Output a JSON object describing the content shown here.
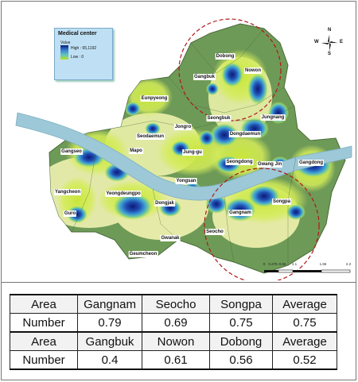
{
  "legend": {
    "title": "Medical center",
    "subtitle": "Value",
    "high": "High : 65,1192",
    "low": "Low : 0"
  },
  "compass": {
    "n": "N",
    "s": "S",
    "e": "E",
    "w": "W"
  },
  "scalebar": {
    "ticks": [
      "0",
      "0.275",
      "0.55",
      "1.1",
      "1.65",
      "2.2"
    ]
  },
  "district_labels": [
    "Dobong",
    "Nowon",
    "Gangbuk",
    "Eunpyeong",
    "Seongbuk",
    "Jungnang",
    "Dongdaemun",
    "Jongro",
    "Seodaemun",
    "Mapo",
    "Jung-gu",
    "Gangseo",
    "Seongdong",
    "Gwang Jin",
    "Gangdong",
    "Yongsan",
    "Yangcheon",
    "Yeongdeungpo",
    "Dongjak",
    "Songpa",
    "Gangnam",
    "Guro",
    "Seocho",
    "Gwanak",
    "Geumcheon"
  ],
  "table": {
    "rows": [
      [
        "Area",
        "Gangnam",
        "Seocho",
        "Songpa",
        "Average"
      ],
      [
        "Number",
        "0.79",
        "0.69",
        "0.75",
        "0.75"
      ],
      [
        "Area",
        "Gangbuk",
        "Nowon",
        "Dobong",
        "Average"
      ],
      [
        "Number",
        "0.4",
        "0.61",
        "0.56",
        "0.52"
      ]
    ]
  },
  "colors": {
    "land": "#6e9a57",
    "land_dark": "#527c40",
    "river": "#9cc8d8",
    "hot": "#0c1a7a",
    "mid": "#3c8ad4",
    "cool": "#5fc4c0",
    "low": "#c8e63a",
    "circle": "#b01818"
  }
}
